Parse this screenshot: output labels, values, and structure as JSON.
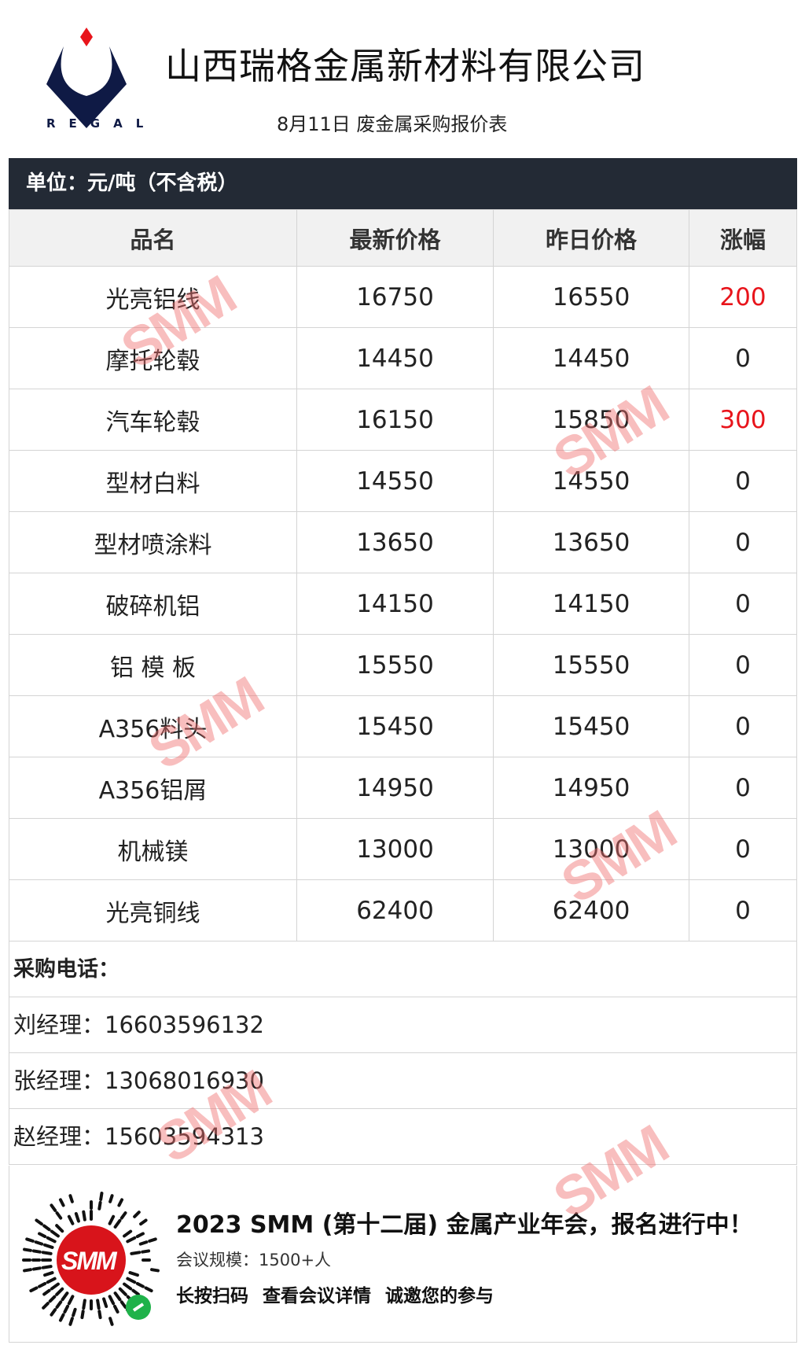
{
  "header": {
    "logo_text": "REGAL",
    "company": "山西瑞格金属新材料有限公司",
    "subtitle": "8月11日 废金属采购报价表"
  },
  "unit": "单位：元/吨（不含税）",
  "table": {
    "columns": [
      "品名",
      "最新价格",
      "昨日价格",
      "涨幅"
    ],
    "rows": [
      {
        "name": "光亮铝线",
        "latest": "16750",
        "yesterday": "16550",
        "change": "200",
        "up": true
      },
      {
        "name": "摩托轮毂",
        "latest": "14450",
        "yesterday": "14450",
        "change": "0",
        "up": false
      },
      {
        "name": "汽车轮毂",
        "latest": "16150",
        "yesterday": "15850",
        "change": "300",
        "up": true
      },
      {
        "name": "型材白料",
        "latest": "14550",
        "yesterday": "14550",
        "change": "0",
        "up": false
      },
      {
        "name": "型材喷涂料",
        "latest": "13650",
        "yesterday": "13650",
        "change": "0",
        "up": false
      },
      {
        "name": "破碎机铝",
        "latest": "14150",
        "yesterday": "14150",
        "change": "0",
        "up": false
      },
      {
        "name": "铝 模 板",
        "latest": "15550",
        "yesterday": "15550",
        "change": "0",
        "up": false
      },
      {
        "name": "A356料头",
        "latest": "15450",
        "yesterday": "15450",
        "change": "0",
        "up": false
      },
      {
        "name": "A356铝屑",
        "latest": "14950",
        "yesterday": "14950",
        "change": "0",
        "up": false
      },
      {
        "name": "机械镁",
        "latest": "13000",
        "yesterday": "13000",
        "change": "0",
        "up": false
      },
      {
        "name": "光亮铜线",
        "latest": "62400",
        "yesterday": "62400",
        "change": "0",
        "up": false
      }
    ]
  },
  "contacts": {
    "label": "采购电话：",
    "items": [
      "刘经理：16603596132",
      "张经理：13068016930",
      "赵经理：15603594313"
    ]
  },
  "promo": {
    "qr_logo": "SMM",
    "headline": "2023 SMM (第十二届) 金属产业年会，报名进行中！",
    "scale": "会议规模：1500+人",
    "cta": "长按扫码  查看会议详情   诚邀您的参与"
  },
  "watermark": "SMM",
  "colors": {
    "up": "#e8141b",
    "unit_bar": "#232a35",
    "logo_navy": "#0f1a45",
    "logo_red": "#e8141b"
  }
}
